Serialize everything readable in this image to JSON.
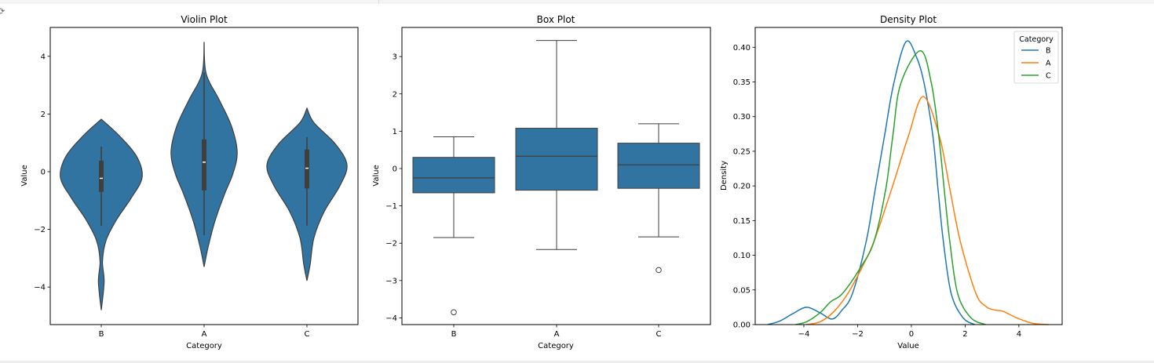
{
  "chart_data": [
    {
      "type": "violin",
      "title": "Violin Plot",
      "xlabel": "Category",
      "ylabel": "Value",
      "categories": [
        "B",
        "A",
        "C"
      ],
      "ylim": [
        -5.3,
        5.0
      ],
      "yticks": [
        -4,
        -2,
        0,
        2,
        4
      ],
      "color": "#3274a1",
      "violins": [
        {
          "category": "B",
          "profile": [
            [
              1.82,
              0
            ],
            [
              1.25,
              0.44
            ],
            [
              0.52,
              0.87
            ],
            [
              -0.2,
              1.0
            ],
            [
              -0.92,
              0.73
            ],
            [
              -1.65,
              0.38
            ],
            [
              -2.37,
              0.12
            ],
            [
              -3.1,
              0.03
            ],
            [
              -3.82,
              0.07
            ],
            [
              -4.8,
              0
            ]
          ],
          "q1": -0.7,
          "median": -0.23,
          "q3": 0.38,
          "whisker_low": -1.88,
          "whisker_high": 0.87
        },
        {
          "category": "A",
          "profile": [
            [
              4.5,
              0
            ],
            [
              3.4,
              0.05
            ],
            [
              2.49,
              0.37
            ],
            [
              1.58,
              0.67
            ],
            [
              0.68,
              0.81
            ],
            [
              -0.05,
              0.71
            ],
            [
              -0.78,
              0.5
            ],
            [
              -1.69,
              0.27
            ],
            [
              -2.6,
              0.1
            ],
            [
              -3.3,
              0
            ]
          ],
          "q1": -0.65,
          "median": 0.33,
          "q3": 1.12,
          "whisker_low": -2.2,
          "whisker_high": 3.43
        },
        {
          "category": "C",
          "profile": [
            [
              2.2,
              0
            ],
            [
              1.7,
              0.17
            ],
            [
              0.97,
              0.69
            ],
            [
              0.24,
              0.98
            ],
            [
              -0.48,
              0.81
            ],
            [
              -1.39,
              0.42
            ],
            [
              -2.3,
              0.17
            ],
            [
              -3.2,
              0.08
            ],
            [
              -3.78,
              0
            ]
          ],
          "q1": -0.58,
          "median": 0.12,
          "q3": 0.77,
          "whisker_low": -1.87,
          "whisker_high": 1.2
        }
      ]
    },
    {
      "type": "box",
      "title": "Box Plot",
      "xlabel": "Category",
      "ylabel": "Value",
      "categories": [
        "B",
        "A",
        "C"
      ],
      "ylim": [
        -4.18,
        3.78
      ],
      "yticks": [
        -4,
        -3,
        -2,
        -1,
        0,
        1,
        2,
        3
      ],
      "color": "#3274a1",
      "boxes": [
        {
          "category": "B",
          "whisker_low": -1.85,
          "q1": -0.65,
          "median": -0.25,
          "q3": 0.3,
          "whisker_high": 0.85,
          "outliers": [
            -3.85
          ]
        },
        {
          "category": "A",
          "whisker_low": -2.17,
          "q1": -0.58,
          "median": 0.33,
          "q3": 1.08,
          "whisker_high": 3.43,
          "outliers": []
        },
        {
          "category": "C",
          "whisker_low": -1.83,
          "q1": -0.53,
          "median": 0.1,
          "q3": 0.68,
          "whisker_high": 1.2,
          "outliers": [
            -2.72
          ]
        }
      ]
    },
    {
      "type": "line",
      "title": "Density Plot",
      "xlabel": "Value",
      "ylabel": "Density",
      "xlim": [
        -5.81,
        5.61
      ],
      "ylim": [
        0,
        0.4286
      ],
      "xticks": [
        -4,
        -2,
        0,
        2,
        4
      ],
      "yticks": [
        0.0,
        0.05,
        0.1,
        0.15,
        0.2,
        0.25,
        0.3,
        0.35,
        0.4
      ],
      "legend": {
        "title": "Category",
        "placement": "top-right"
      },
      "series": [
        {
          "name": "B",
          "color": "#1f77b4",
          "points": [
            [
              -5.35,
              0
            ],
            [
              -4.9,
              0.005
            ],
            [
              -4.4,
              0.016
            ],
            [
              -3.9,
              0.025
            ],
            [
              -3.4,
              0.017
            ],
            [
              -2.95,
              0.008
            ],
            [
              -2.6,
              0.02
            ],
            [
              -2.19,
              0.045
            ],
            [
              -1.68,
              0.12
            ],
            [
              -1.34,
              0.196
            ],
            [
              -1.0,
              0.272
            ],
            [
              -0.66,
              0.347
            ],
            [
              -0.2,
              0.408
            ],
            [
              0.2,
              0.385
            ],
            [
              0.48,
              0.347
            ],
            [
              0.8,
              0.272
            ],
            [
              0.99,
              0.196
            ],
            [
              1.19,
              0.12
            ],
            [
              1.48,
              0.045
            ],
            [
              1.92,
              0.01
            ],
            [
              2.36,
              0
            ]
          ]
        },
        {
          "name": "A",
          "color": "#ff7f0e",
          "points": [
            [
              -3.9,
              0
            ],
            [
              -3.4,
              0.004
            ],
            [
              -2.9,
              0.018
            ],
            [
              -2.36,
              0.045
            ],
            [
              -1.83,
              0.083
            ],
            [
              -1.39,
              0.12
            ],
            [
              -0.73,
              0.196
            ],
            [
              -0.11,
              0.272
            ],
            [
              0.44,
              0.329
            ],
            [
              1.04,
              0.272
            ],
            [
              1.43,
              0.196
            ],
            [
              1.82,
              0.12
            ],
            [
              2.4,
              0.045
            ],
            [
              2.78,
              0.026
            ],
            [
              3.1,
              0.021
            ],
            [
              3.42,
              0.019
            ],
            [
              3.9,
              0.01
            ],
            [
              4.5,
              0.002
            ],
            [
              5.1,
              0
            ]
          ]
        },
        {
          "name": "C",
          "color": "#2ca02c",
          "points": [
            [
              -4.31,
              0
            ],
            [
              -3.9,
              0.004
            ],
            [
              -3.4,
              0.017
            ],
            [
              -3.0,
              0.033
            ],
            [
              -2.56,
              0.045
            ],
            [
              -1.88,
              0.083
            ],
            [
              -1.39,
              0.12
            ],
            [
              -0.95,
              0.196
            ],
            [
              -0.69,
              0.272
            ],
            [
              -0.4,
              0.347
            ],
            [
              0.34,
              0.395
            ],
            [
              0.75,
              0.347
            ],
            [
              1.02,
              0.272
            ],
            [
              1.22,
              0.196
            ],
            [
              1.43,
              0.12
            ],
            [
              1.72,
              0.045
            ],
            [
              2.21,
              0.01
            ],
            [
              2.76,
              0
            ]
          ]
        }
      ]
    }
  ]
}
